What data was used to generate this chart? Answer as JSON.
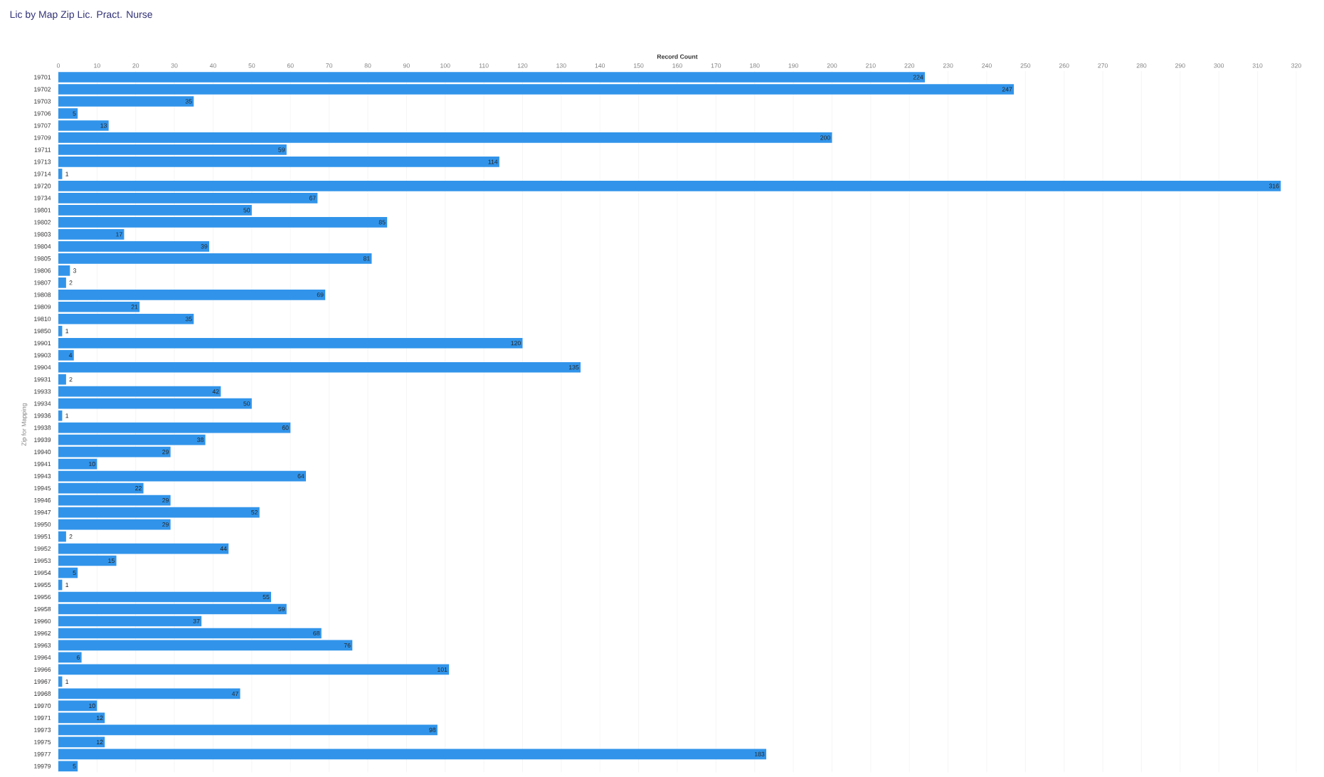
{
  "chart_data": {
    "type": "bar",
    "orientation": "horizontal",
    "title": "Lic by Map Zip Lic. Pract. Nurse",
    "xlabel": "Record Count",
    "ylabel": "Zip for Mapping",
    "categories": [
      "19701",
      "19702",
      "19703",
      "19706",
      "19707",
      "19709",
      "19711",
      "19713",
      "19714",
      "19720",
      "19734",
      "19801",
      "19802",
      "19803",
      "19804",
      "19805",
      "19806",
      "19807",
      "19808",
      "19809",
      "19810",
      "19850",
      "19901",
      "19903",
      "19904",
      "19931",
      "19933",
      "19934",
      "19936",
      "19938",
      "19939",
      "19940",
      "19941",
      "19943",
      "19945",
      "19946",
      "19947",
      "19950",
      "19951",
      "19952",
      "19953",
      "19954",
      "19955",
      "19956",
      "19958",
      "19960",
      "19962",
      "19963",
      "19964",
      "19966",
      "19967",
      "19968",
      "19970",
      "19971",
      "19973",
      "19975",
      "19977",
      "19979"
    ],
    "values": [
      224,
      247,
      35,
      5,
      13,
      200,
      59,
      114,
      1,
      316,
      67,
      50,
      85,
      17,
      39,
      81,
      3,
      2,
      69,
      21,
      35,
      1,
      120,
      4,
      135,
      2,
      42,
      50,
      1,
      60,
      38,
      29,
      10,
      64,
      22,
      29,
      52,
      29,
      2,
      44,
      15,
      5,
      1,
      55,
      59,
      37,
      68,
      76,
      6,
      101,
      1,
      47,
      10,
      12,
      98,
      12,
      183,
      5
    ],
    "color": "#3194ea",
    "data_labels": true,
    "grid": "x",
    "xlim": [
      0,
      320
    ],
    "xticks": [
      0,
      10,
      20,
      30,
      40,
      50,
      60,
      70,
      80,
      90,
      100,
      110,
      120,
      130,
      140,
      150,
      160,
      170,
      180,
      190,
      200,
      210,
      220,
      230,
      240,
      250,
      260,
      270,
      280,
      290,
      300,
      310,
      320
    ]
  }
}
